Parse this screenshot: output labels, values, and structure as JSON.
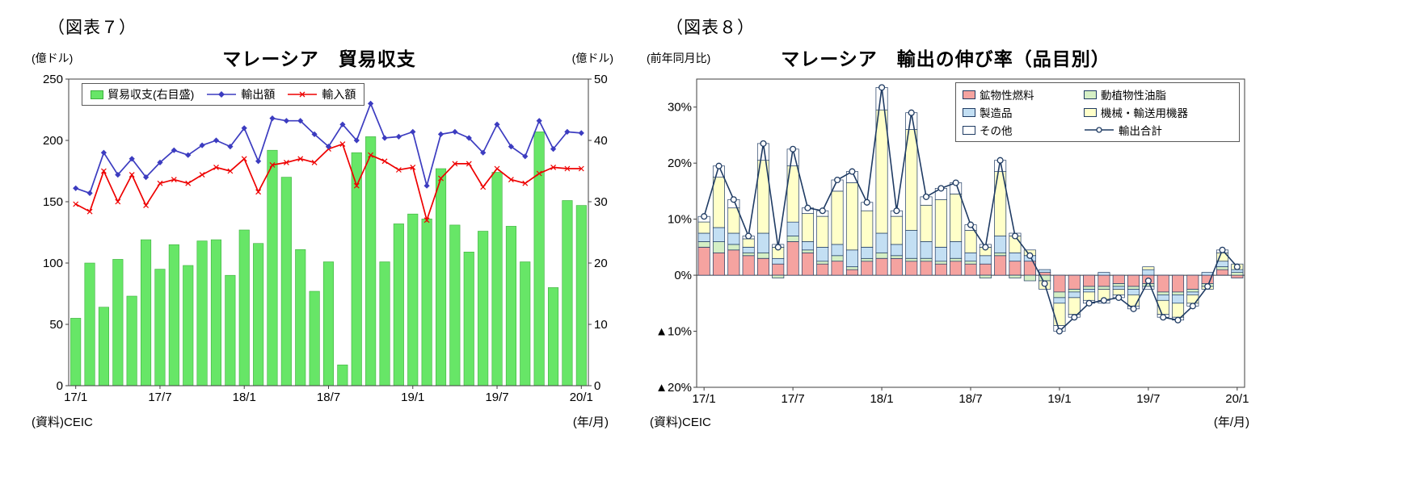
{
  "chart_data": [
    {
      "id": "fig7",
      "type": "bar",
      "combo": "bars on right axis + two lines on left axis",
      "figure_tag": "（図表７）",
      "title": "マレーシア　貿易収支",
      "left_axis_unit": "(億ドル)",
      "right_axis_unit": "(億ドル)",
      "source": "(資料)CEIC",
      "x_axis_unit": "(年/月)",
      "legend_position": "top-left inside plot",
      "grid": false,
      "left_ylim": [
        0,
        250
      ],
      "right_ylim": [
        0,
        50
      ],
      "left_yticks": [
        0,
        50,
        100,
        150,
        200,
        250
      ],
      "right_yticks": [
        0,
        10,
        20,
        30,
        40,
        50
      ],
      "x_tick_labels": [
        "17/1",
        "17/7",
        "18/1",
        "18/7",
        "19/1",
        "19/7",
        "20/1"
      ],
      "x_tick_indices": [
        0,
        6,
        12,
        18,
        24,
        30,
        36
      ],
      "months": [
        "17/1",
        "17/2",
        "17/3",
        "17/4",
        "17/5",
        "17/6",
        "17/7",
        "17/8",
        "17/9",
        "17/10",
        "17/11",
        "17/12",
        "18/1",
        "18/2",
        "18/3",
        "18/4",
        "18/5",
        "18/6",
        "18/7",
        "18/8",
        "18/9",
        "18/10",
        "18/11",
        "18/12",
        "19/1",
        "19/2",
        "19/3",
        "19/4",
        "19/5",
        "19/6",
        "19/7",
        "19/8",
        "19/9",
        "19/10",
        "19/11",
        "19/12",
        "20/1"
      ],
      "series": [
        {
          "name": "貿易収支(右目盛)",
          "type": "bar",
          "axis": "right",
          "color": "#67E667",
          "border": "#3FAF3F",
          "values": [
            11,
            20,
            12.8,
            20.6,
            14.6,
            23.8,
            19,
            23,
            19.6,
            23.6,
            23.8,
            18,
            25.4,
            23.2,
            38.4,
            34,
            22.2,
            15.4,
            20.2,
            3.4,
            38,
            40.6,
            20.2,
            26.4,
            28,
            27.2,
            35.4,
            26.2,
            21.8,
            25.2,
            34.8,
            26,
            20.2,
            41.4,
            16,
            30.2,
            29.4
          ]
        },
        {
          "name": "輸出額",
          "type": "line",
          "marker": "diamond",
          "axis": "left",
          "color": "#3C3CC0",
          "values": [
            161,
            157,
            190,
            172,
            185,
            170,
            182,
            192,
            188,
            196,
            200,
            195,
            210,
            183,
            218,
            216,
            216,
            205,
            195,
            213,
            200,
            230,
            202,
            203,
            207,
            163,
            205,
            207,
            202,
            190,
            213,
            195,
            187,
            216,
            193,
            207,
            206
          ]
        },
        {
          "name": "輸入額",
          "type": "line",
          "marker": "x",
          "axis": "left",
          "color": "#EE0000",
          "values": [
            148,
            142,
            175,
            150,
            172,
            147,
            165,
            168,
            165,
            172,
            178,
            175,
            185,
            158,
            180,
            182,
            185,
            182,
            193,
            197,
            163,
            188,
            183,
            176,
            178,
            135,
            169,
            181,
            181,
            162,
            177,
            168,
            165,
            173,
            178,
            177,
            177
          ]
        }
      ]
    },
    {
      "id": "fig8",
      "type": "bar",
      "combo": "stacked contribution bars + total growth line",
      "figure_tag": "（図表８）",
      "title": "マレーシア　輸出の伸び率（品目別）",
      "axis_unit": "(前年同月比)",
      "source": "(資料)CEIC",
      "x_axis_unit": "(年/月)",
      "legend_position": "top-right inside plot",
      "grid": false,
      "ylim": [
        -20,
        35
      ],
      "yticks": [
        30,
        20,
        10,
        0,
        -10,
        -20
      ],
      "negative_tick_prefix": "▲",
      "outline": "#1F3B63",
      "x_tick_labels": [
        "17/1",
        "17/7",
        "18/1",
        "18/7",
        "19/1",
        "19/7",
        "20/1"
      ],
      "x_tick_indices": [
        0,
        6,
        12,
        18,
        24,
        30,
        36
      ],
      "months": [
        "17/1",
        "17/2",
        "17/3",
        "17/4",
        "17/5",
        "17/6",
        "17/7",
        "17/8",
        "17/9",
        "17/10",
        "17/11",
        "17/12",
        "18/1",
        "18/2",
        "18/3",
        "18/4",
        "18/5",
        "18/6",
        "18/7",
        "18/8",
        "18/9",
        "18/10",
        "18/11",
        "18/12",
        "19/1",
        "19/2",
        "19/3",
        "19/4",
        "19/5",
        "19/6",
        "19/7",
        "19/8",
        "19/9",
        "19/10",
        "19/11",
        "19/12",
        "20/1"
      ],
      "series": [
        {
          "name": "鉱物性燃料",
          "color": "#F5A3A0",
          "values": [
            5,
            4,
            4.5,
            3.5,
            3,
            2,
            6,
            4,
            2,
            2.5,
            1,
            2.5,
            3,
            3,
            2.5,
            2.5,
            2,
            2.5,
            2,
            2,
            3.5,
            2.5,
            2.5,
            0.5,
            -3,
            -2.5,
            -2,
            -2,
            -1.5,
            -2,
            -1.5,
            -3,
            -3,
            -2.5,
            -1.5,
            1,
            -0.5
          ]
        },
        {
          "name": "動植物性油脂",
          "color": "#D5EFC5",
          "values": [
            1,
            2,
            1,
            0.5,
            1,
            -0.5,
            1,
            0.5,
            0.5,
            1,
            0.5,
            0.5,
            1,
            0.5,
            0.5,
            0.5,
            0.5,
            0.5,
            0.5,
            -0.5,
            0.5,
            -0.5,
            -1,
            -1,
            -1,
            -0.5,
            -0.5,
            -0.5,
            -0.5,
            -0.5,
            -0.5,
            -0.5,
            -0.5,
            -0.5,
            -0.5,
            0.5,
            0.5
          ]
        },
        {
          "name": "製造品",
          "color": "#C3DFF3",
          "values": [
            1.5,
            2.5,
            2,
            1,
            3.5,
            1,
            2.5,
            1.5,
            2.5,
            2,
            3,
            2,
            3.5,
            2,
            5,
            3,
            2.5,
            3,
            1.5,
            1.5,
            3,
            1.5,
            1,
            0.5,
            -1,
            -1,
            -0.5,
            0.5,
            -0.5,
            -1,
            1,
            -1,
            -1.5,
            -0.5,
            0.5,
            1,
            0.5
          ]
        },
        {
          "name": "機械・輸送用機器",
          "color": "#FFFFC9",
          "values": [
            2,
            9,
            4.5,
            1.5,
            13,
            2,
            10,
            5,
            5.5,
            9.5,
            12,
            6.5,
            22,
            5,
            18,
            6.5,
            8.5,
            8.5,
            4,
            1.5,
            11.5,
            3,
            1,
            -1.5,
            -4,
            -3,
            -1.5,
            -2,
            -1,
            -2,
            0.5,
            -2.5,
            -2.5,
            -1.5,
            -0.5,
            1.5,
            1
          ]
        },
        {
          "name": "その他",
          "color": "#FFFFFF",
          "values": [
            1,
            2,
            1.5,
            0.5,
            3,
            0.5,
            3,
            1,
            1,
            2,
            2,
            1.5,
            4,
            1,
            3,
            1.5,
            2,
            2,
            1,
            0.5,
            2,
            0.5,
            0,
            0,
            -1,
            -0.5,
            -0.5,
            -0.5,
            -0.5,
            -0.5,
            -0.5,
            -0.5,
            -0.5,
            -0.5,
            0,
            0.5,
            0
          ]
        }
      ],
      "total_line": {
        "name": "輸出合計",
        "marker": "circle",
        "color": "#1F3B63",
        "values": [
          10.5,
          19.5,
          13.5,
          7,
          23.5,
          5,
          22.5,
          12,
          11.5,
          17,
          18.5,
          13,
          33.5,
          11.5,
          29,
          14,
          15.5,
          16.5,
          9,
          5,
          20.5,
          7,
          3.5,
          -1.5,
          -10,
          -7.5,
          -5,
          -4.5,
          -4,
          -6,
          -1,
          -7.5,
          -8,
          -5.5,
          -2,
          4.5,
          1.5
        ]
      }
    }
  ]
}
